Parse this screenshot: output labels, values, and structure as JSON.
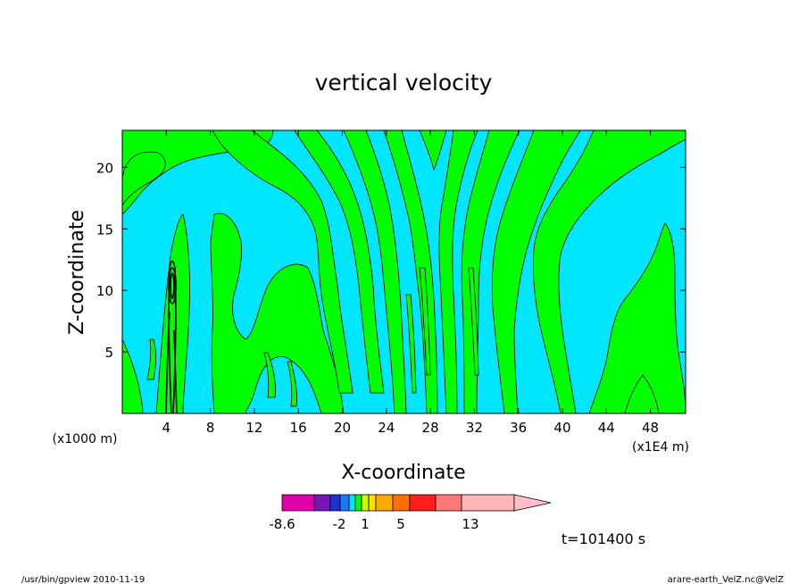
{
  "chart_data": {
    "type": "heatmap",
    "title": "vertical velocity",
    "xlabel": "X-coordinate",
    "ylabel": "Z-coordinate",
    "x_unit_label": "(x1E4 m)",
    "y_unit_label": "(x1000 m)",
    "x_ticks": [
      "4",
      "8",
      "12",
      "16",
      "20",
      "24",
      "28",
      "32",
      "36",
      "40",
      "44",
      "48"
    ],
    "y_ticks": [
      "5",
      "10",
      "15",
      "20"
    ],
    "xlim": [
      0,
      51.2
    ],
    "ylim": [
      0,
      23
    ],
    "color_levels": [
      {
        "color": "#e000a8"
      },
      {
        "color": "#7a14b4"
      },
      {
        "color": "#1e32d2"
      },
      {
        "color": "#1e78ff"
      },
      {
        "color": "#00e1ff"
      },
      {
        "color": "#00ff00"
      },
      {
        "color": "#cdff00"
      },
      {
        "color": "#ffe100"
      },
      {
        "color": "#ffaa00"
      },
      {
        "color": "#ff6e00"
      },
      {
        "color": "#ff1e1e"
      },
      {
        "color": "#ff7878"
      },
      {
        "color": "#ffb6b6"
      },
      {
        "color": "#ffbec8"
      }
    ],
    "colorbar_labels": [
      "-8.6",
      "-2",
      "1",
      "5",
      "13"
    ],
    "dominant_fields": {
      "negative": "#00e6ff",
      "positive": "#00ff00"
    },
    "time_label": "t=101400 s"
  },
  "footer": {
    "left": "/usr/bin/gpview   2010-11-19",
    "right": "arare-earth_VelZ.nc@VelZ"
  }
}
